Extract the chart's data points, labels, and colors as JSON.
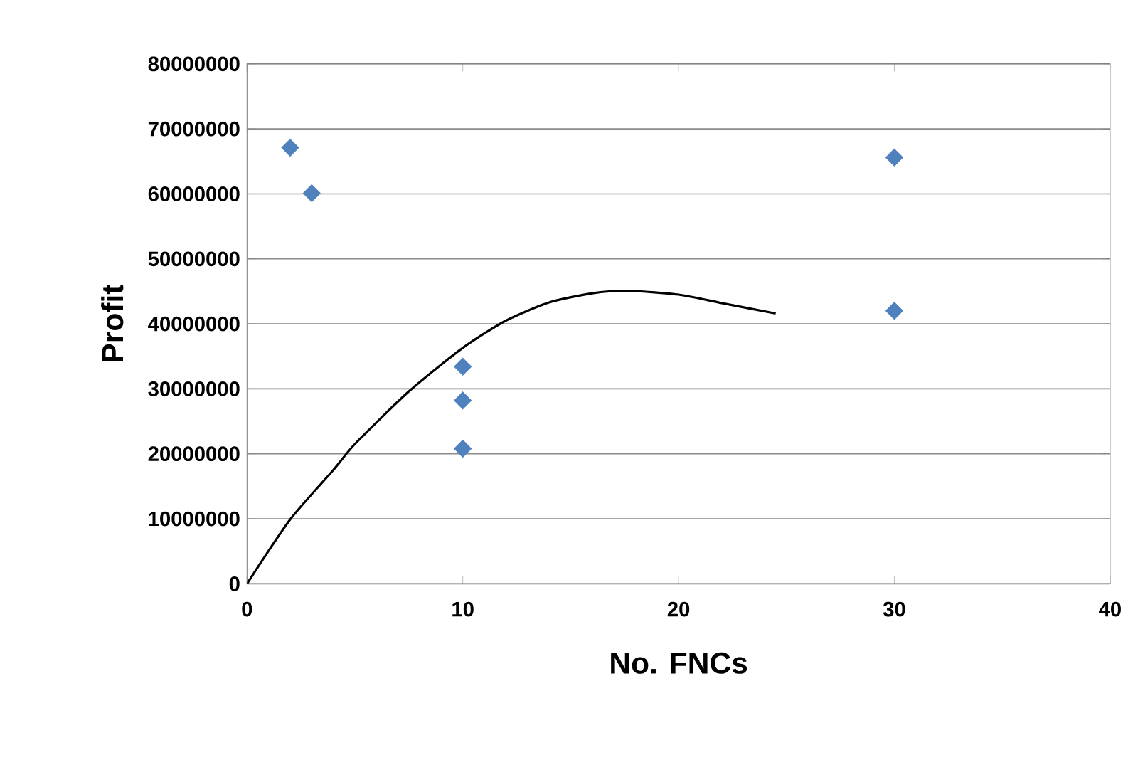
{
  "chart_data": {
    "type": "scatter",
    "xlabel": "No. FNCs",
    "ylabel": "Profit",
    "xlim": [
      0,
      40
    ],
    "xticks": [
      0,
      10,
      20,
      30,
      40
    ],
    "ylim": [
      0,
      80000000
    ],
    "yticks": [
      0,
      10000000,
      20000000,
      30000000,
      40000000,
      50000000,
      60000000,
      70000000,
      80000000
    ],
    "grid": "y",
    "marker": "diamond",
    "series": [
      {
        "color": "#4f81bd",
        "x": [
          2,
          3,
          10,
          10,
          10,
          30,
          30
        ],
        "values": [
          67100000,
          60100000,
          33400000,
          28200000,
          20800000,
          65600000,
          42000000
        ]
      },
      {
        "type": "line",
        "color": "#000000",
        "marker": "none",
        "x": [
          0,
          2,
          4,
          5,
          7.5,
          10,
          12,
          14,
          16,
          17.6,
          20,
          22,
          24.5
        ],
        "values": [
          0,
          9900000,
          17500000,
          21500000,
          29600000,
          36300000,
          40500000,
          43300000,
          44700000,
          45100000,
          44500000,
          43200000,
          41600000
        ]
      }
    ]
  }
}
